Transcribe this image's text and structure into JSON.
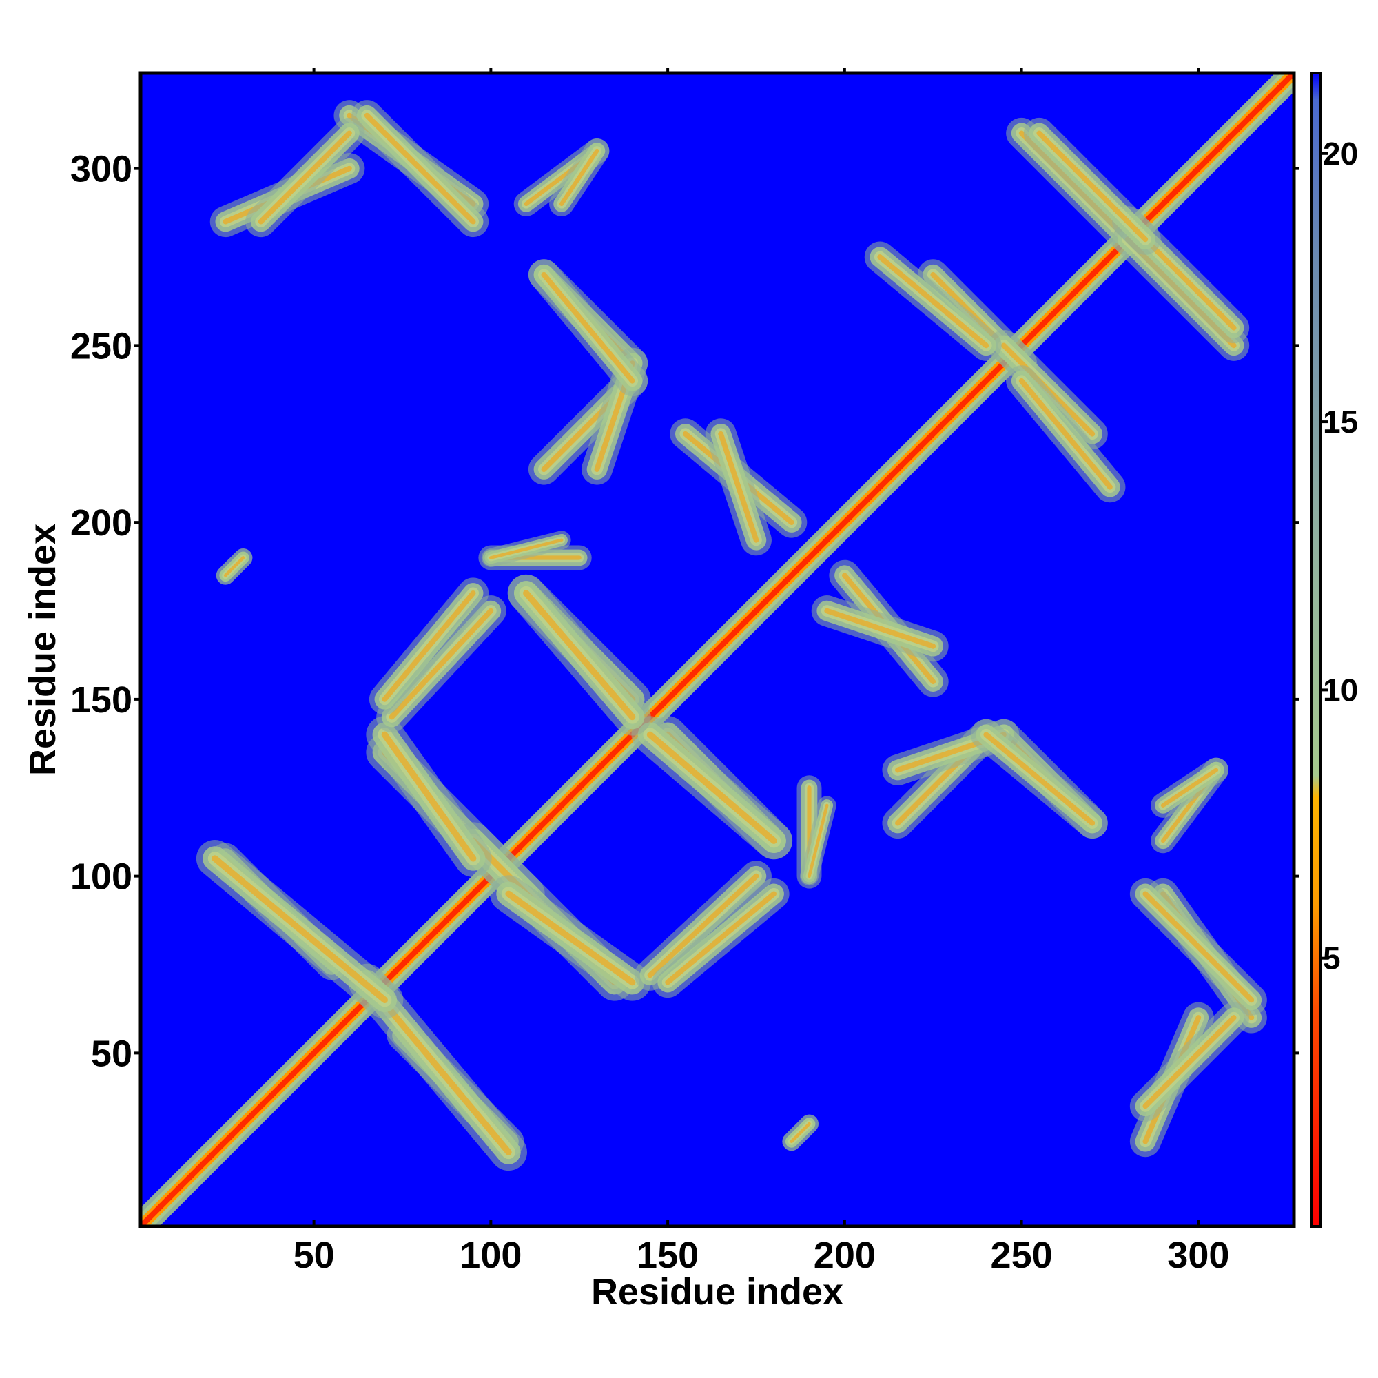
{
  "chart_data": {
    "type": "heatmap",
    "title": "",
    "xlabel": "Residue index",
    "ylabel": "Residue index",
    "xlim": [
      1,
      327
    ],
    "ylim": [
      1,
      327
    ],
    "x_ticks": [
      50,
      100,
      150,
      200,
      250,
      300
    ],
    "y_ticks": [
      50,
      100,
      150,
      200,
      250,
      300
    ],
    "colorbar": {
      "range": [
        0,
        21.5
      ],
      "ticks": [
        5,
        10,
        15,
        20
      ],
      "stops": [
        {
          "value": 0,
          "color": "#ff0000"
        },
        {
          "value": 4,
          "color": "#ff4a00"
        },
        {
          "value": 6,
          "color": "#ff9c00"
        },
        {
          "value": 8,
          "color": "#ffb300"
        },
        {
          "value": 8.4,
          "color": "#a6c98e"
        },
        {
          "value": 13,
          "color": "#8fb0a0"
        },
        {
          "value": 18,
          "color": "#6b8ab0"
        },
        {
          "value": 21,
          "color": "#4a6ad0"
        },
        {
          "value": 21.5,
          "color": "#0000ff"
        }
      ]
    },
    "background_color": "#0000ff",
    "description": "Symmetric residue-residue distance map; diagonal band of short distances plus off-diagonal contact streaks",
    "contacts": [
      {
        "a": [
          1,
          1
        ],
        "b": [
          327,
          327
        ],
        "width": 4
      },
      {
        "a": [
          25,
          105
        ],
        "b": [
          55,
          75
        ],
        "width": 5
      },
      {
        "a": [
          65,
          70
        ],
        "b": [
          105,
          22
        ],
        "width": 6
      },
      {
        "a": [
          70,
          135
        ],
        "b": [
          110,
          95
        ],
        "width": 6
      },
      {
        "a": [
          105,
          95
        ],
        "b": [
          140,
          70
        ],
        "width": 6
      },
      {
        "a": [
          145,
          72
        ],
        "b": [
          175,
          100
        ],
        "width": 5
      },
      {
        "a": [
          70,
          150
        ],
        "b": [
          95,
          180
        ],
        "width": 5
      },
      {
        "a": [
          100,
          190
        ],
        "b": [
          125,
          190
        ],
        "width": 4
      },
      {
        "a": [
          110,
          180
        ],
        "b": [
          140,
          150
        ],
        "width": 6
      },
      {
        "a": [
          145,
          140
        ],
        "b": [
          180,
          110
        ],
        "width": 6
      },
      {
        "a": [
          115,
          215
        ],
        "b": [
          140,
          240
        ],
        "width": 5
      },
      {
        "a": [
          115,
          270
        ],
        "b": [
          140,
          245
        ],
        "width": 5
      },
      {
        "a": [
          155,
          225
        ],
        "b": [
          185,
          200
        ],
        "width": 5
      },
      {
        "a": [
          195,
          175
        ],
        "b": [
          225,
          165
        ],
        "width": 5
      },
      {
        "a": [
          215,
          130
        ],
        "b": [
          245,
          140
        ],
        "width": 5
      },
      {
        "a": [
          240,
          140
        ],
        "b": [
          270,
          115
        ],
        "width": 5
      },
      {
        "a": [
          225,
          270
        ],
        "b": [
          250,
          245
        ],
        "width": 5
      },
      {
        "a": [
          250,
          240
        ],
        "b": [
          275,
          210
        ],
        "width": 5
      },
      {
        "a": [
          250,
          310
        ],
        "b": [
          280,
          280
        ],
        "width": 5
      },
      {
        "a": [
          280,
          285
        ],
        "b": [
          310,
          255
        ],
        "width": 5
      },
      {
        "a": [
          25,
          285
        ],
        "b": [
          60,
          300
        ],
        "width": 5
      },
      {
        "a": [
          60,
          315
        ],
        "b": [
          95,
          290
        ],
        "width": 5
      },
      {
        "a": [
          110,
          290
        ],
        "b": [
          130,
          305
        ],
        "width": 4
      },
      {
        "a": [
          285,
          95
        ],
        "b": [
          315,
          65
        ],
        "width": 5
      },
      {
        "a": [
          285,
          35
        ],
        "b": [
          310,
          60
        ],
        "width": 5
      },
      {
        "a": [
          290,
          120
        ],
        "b": [
          305,
          130
        ],
        "width": 4
      },
      {
        "a": [
          185,
          25
        ],
        "b": [
          190,
          30
        ],
        "width": 3
      },
      {
        "a": [
          25,
          185
        ],
        "b": [
          30,
          190
        ],
        "width": 3
      },
      {
        "a": [
          190,
          100
        ],
        "b": [
          195,
          120
        ],
        "width": 3
      }
    ]
  }
}
